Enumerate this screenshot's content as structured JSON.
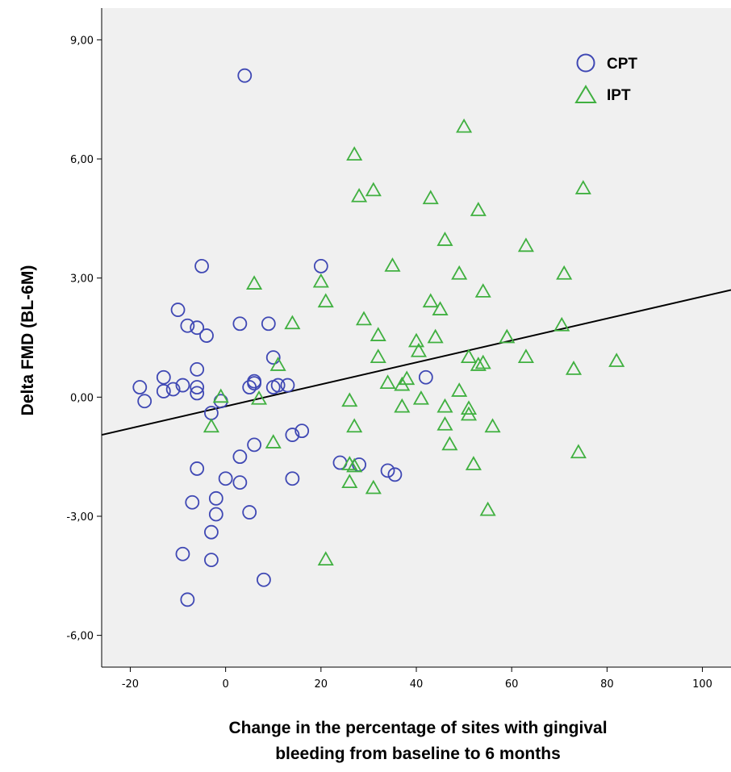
{
  "chart_data": {
    "type": "scatter",
    "xlabel_lines": [
      "Change in the percentage of sites with gingival",
      "bleeding from baseline to 6 months"
    ],
    "ylabel": "Delta FMD (BL-6M)",
    "xlim": [
      -26,
      106
    ],
    "ylim": [
      -6.8,
      9.8
    ],
    "x_ticks": [
      -20,
      0,
      20,
      40,
      60,
      80,
      100
    ],
    "x_tick_labels": [
      "-20",
      "0",
      "20",
      "40",
      "60",
      "80",
      "100"
    ],
    "y_ticks": [
      -6,
      -3,
      0,
      3,
      6,
      9
    ],
    "y_tick_labels": [
      "-6,00",
      "-3,00",
      "0,00",
      "3,00",
      "6,00",
      "9,00"
    ],
    "grid": false,
    "legend_position": "top-right",
    "background": "#f0f0f0",
    "series": [
      {
        "name": "CPT",
        "marker": "circle",
        "color": "#3f48b4",
        "points": [
          [
            4,
            8.1
          ],
          [
            -5,
            3.3
          ],
          [
            20,
            3.3
          ],
          [
            -10,
            2.2
          ],
          [
            -8,
            1.8
          ],
          [
            -6,
            1.75
          ],
          [
            -4,
            1.55
          ],
          [
            3,
            1.85
          ],
          [
            9,
            1.85
          ],
          [
            10,
            1.0
          ],
          [
            -6,
            0.7
          ],
          [
            -13,
            0.5
          ],
          [
            -18,
            0.25
          ],
          [
            -17,
            -0.1
          ],
          [
            -13,
            0.15
          ],
          [
            -11,
            0.2
          ],
          [
            -9,
            0.3
          ],
          [
            -6,
            0.25
          ],
          [
            -6,
            0.1
          ],
          [
            -3,
            -0.4
          ],
          [
            -1,
            -0.1
          ],
          [
            5,
            0.25
          ],
          [
            6,
            0.4
          ],
          [
            6,
            0.35
          ],
          [
            10,
            0.25
          ],
          [
            11,
            0.3
          ],
          [
            13,
            0.3
          ],
          [
            14,
            -0.95
          ],
          [
            16,
            -0.85
          ],
          [
            6,
            -1.2
          ],
          [
            3,
            -1.5
          ],
          [
            -6,
            -1.8
          ],
          [
            0,
            -2.05
          ],
          [
            3,
            -2.15
          ],
          [
            14,
            -2.05
          ],
          [
            -2,
            -2.55
          ],
          [
            -7,
            -2.65
          ],
          [
            -2,
            -2.95
          ],
          [
            5,
            -2.9
          ],
          [
            -3,
            -3.4
          ],
          [
            -9,
            -3.95
          ],
          [
            -3,
            -4.1
          ],
          [
            8,
            -4.6
          ],
          [
            -8,
            -5.1
          ],
          [
            24,
            -1.65
          ],
          [
            28,
            -1.7
          ],
          [
            34,
            -1.85
          ],
          [
            35.5,
            -1.95
          ],
          [
            42,
            0.5
          ]
        ]
      },
      {
        "name": "IPT",
        "marker": "triangle",
        "color": "#40b040",
        "points": [
          [
            50,
            6.8
          ],
          [
            27,
            6.1
          ],
          [
            75,
            5.25
          ],
          [
            28,
            5.05
          ],
          [
            31,
            5.2
          ],
          [
            43,
            5.0
          ],
          [
            53,
            4.7
          ],
          [
            46,
            3.95
          ],
          [
            63,
            3.8
          ],
          [
            35,
            3.3
          ],
          [
            49,
            3.1
          ],
          [
            71,
            3.1
          ],
          [
            6,
            2.85
          ],
          [
            20,
            2.9
          ],
          [
            54,
            2.65
          ],
          [
            21,
            2.4
          ],
          [
            43,
            2.4
          ],
          [
            45,
            2.2
          ],
          [
            29,
            1.95
          ],
          [
            14,
            1.85
          ],
          [
            70.5,
            1.8
          ],
          [
            32,
            1.55
          ],
          [
            44,
            1.5
          ],
          [
            59,
            1.5
          ],
          [
            40,
            1.4
          ],
          [
            40.5,
            1.15
          ],
          [
            11,
            0.8
          ],
          [
            32,
            1.0
          ],
          [
            51,
            1.0
          ],
          [
            53,
            0.8
          ],
          [
            54,
            0.85
          ],
          [
            63,
            1.0
          ],
          [
            82,
            0.9
          ],
          [
            73,
            0.7
          ],
          [
            38,
            0.45
          ],
          [
            37,
            0.3
          ],
          [
            34,
            0.35
          ],
          [
            49,
            0.15
          ],
          [
            -1,
            0.0
          ],
          [
            7,
            -0.05
          ],
          [
            26,
            -0.1
          ],
          [
            41,
            -0.05
          ],
          [
            37,
            -0.25
          ],
          [
            46,
            -0.25
          ],
          [
            51,
            -0.3
          ],
          [
            51,
            -0.45
          ],
          [
            -3,
            -0.75
          ],
          [
            27,
            -0.75
          ],
          [
            46,
            -0.7
          ],
          [
            56,
            -0.75
          ],
          [
            10,
            -1.15
          ],
          [
            47,
            -1.2
          ],
          [
            74,
            -1.4
          ],
          [
            26,
            -1.7
          ],
          [
            27,
            -1.75
          ],
          [
            52,
            -1.7
          ],
          [
            26,
            -2.15
          ],
          [
            31,
            -2.3
          ],
          [
            55,
            -2.85
          ],
          [
            21,
            -4.1
          ]
        ]
      }
    ],
    "fit_line": {
      "x": [
        -26,
        106
      ],
      "y": [
        -0.95,
        2.7
      ],
      "color": "#000000"
    }
  }
}
